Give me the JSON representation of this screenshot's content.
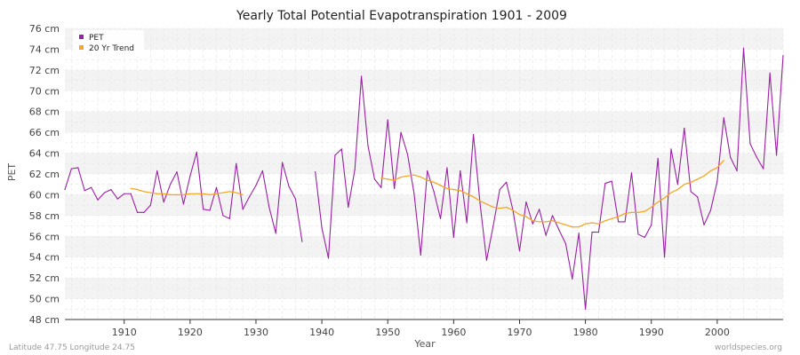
{
  "chart_data": {
    "type": "line",
    "title": "Yearly Total Potential Evapotranspiration 1901 - 2009",
    "xlabel": "Year",
    "ylabel": "PET",
    "y_unit": "cm",
    "xlim": [
      1901,
      2009
    ],
    "ylim": [
      48,
      76
    ],
    "x_ticks": [
      1910,
      1920,
      1930,
      1940,
      1950,
      1960,
      1970,
      1980,
      1990,
      2000
    ],
    "y_ticks": [
      48,
      50,
      52,
      54,
      56,
      58,
      60,
      62,
      64,
      66,
      68,
      70,
      72,
      74,
      76
    ],
    "grid": true,
    "legend_position": "top-left",
    "series": [
      {
        "name": "PET",
        "color": "#9b1fa5",
        "points": [
          [
            1901,
            60.5
          ],
          [
            1902,
            62.5
          ],
          [
            1903,
            62.6
          ],
          [
            1904,
            60.4
          ],
          [
            1905,
            60.7
          ],
          [
            1906,
            59.5
          ],
          [
            1907,
            60.2
          ],
          [
            1908,
            60.5
          ],
          [
            1909,
            59.6
          ],
          [
            1910,
            60.1
          ],
          [
            1911,
            60.1
          ],
          [
            1912,
            58.3
          ],
          [
            1913,
            58.3
          ],
          [
            1914,
            59.0
          ],
          [
            1915,
            62.3
          ],
          [
            1916,
            59.3
          ],
          [
            1917,
            61.0
          ],
          [
            1918,
            62.2
          ],
          [
            1919,
            59.1
          ],
          [
            1920,
            61.8
          ],
          [
            1921,
            64.1
          ],
          [
            1922,
            58.6
          ],
          [
            1923,
            58.5
          ],
          [
            1924,
            60.7
          ],
          [
            1925,
            58.0
          ],
          [
            1926,
            57.7
          ],
          [
            1927,
            63.0
          ],
          [
            1928,
            58.6
          ],
          [
            1929,
            59.8
          ],
          [
            1930,
            60.9
          ],
          [
            1931,
            62.3
          ],
          [
            1932,
            58.8
          ],
          [
            1933,
            56.3
          ],
          [
            1934,
            63.1
          ],
          [
            1935,
            60.8
          ],
          [
            1936,
            59.6
          ],
          [
            1937,
            55.5
          ],
          [
            1938,
            null
          ],
          [
            1939,
            62.2
          ],
          [
            1940,
            56.8
          ],
          [
            1941,
            53.9
          ],
          [
            1942,
            63.8
          ],
          [
            1943,
            64.4
          ],
          [
            1944,
            58.8
          ],
          [
            1945,
            62.4
          ],
          [
            1946,
            71.4
          ],
          [
            1947,
            64.7
          ],
          [
            1948,
            61.5
          ],
          [
            1949,
            60.7
          ],
          [
            1950,
            67.2
          ],
          [
            1951,
            60.6
          ],
          [
            1952,
            66.0
          ],
          [
            1953,
            63.9
          ],
          [
            1954,
            60.1
          ],
          [
            1955,
            54.2
          ],
          [
            1956,
            62.3
          ],
          [
            1957,
            60.3
          ],
          [
            1958,
            57.7
          ],
          [
            1959,
            62.6
          ],
          [
            1960,
            55.9
          ],
          [
            1961,
            62.3
          ],
          [
            1962,
            57.3
          ],
          [
            1963,
            65.8
          ],
          [
            1964,
            59.2
          ],
          [
            1965,
            53.7
          ],
          [
            1966,
            57.0
          ],
          [
            1967,
            60.5
          ],
          [
            1968,
            61.2
          ],
          [
            1969,
            58.5
          ],
          [
            1970,
            54.6
          ],
          [
            1971,
            59.3
          ],
          [
            1972,
            57.2
          ],
          [
            1973,
            58.6
          ],
          [
            1974,
            56.1
          ],
          [
            1975,
            58.0
          ],
          [
            1976,
            56.6
          ],
          [
            1977,
            55.3
          ],
          [
            1978,
            51.9
          ],
          [
            1979,
            56.3
          ],
          [
            1980,
            49.0
          ],
          [
            1981,
            56.4
          ],
          [
            1982,
            56.4
          ],
          [
            1983,
            61.1
          ],
          [
            1984,
            61.3
          ],
          [
            1985,
            57.4
          ],
          [
            1986,
            57.4
          ],
          [
            1987,
            62.1
          ],
          [
            1988,
            56.2
          ],
          [
            1989,
            55.9
          ],
          [
            1990,
            57.1
          ],
          [
            1991,
            63.5
          ],
          [
            1992,
            54.0
          ],
          [
            1993,
            64.4
          ],
          [
            1994,
            61.0
          ],
          [
            1995,
            66.4
          ],
          [
            1996,
            60.3
          ],
          [
            1997,
            59.8
          ],
          [
            1998,
            57.1
          ],
          [
            1999,
            58.5
          ],
          [
            2000,
            61.3
          ],
          [
            2001,
            67.4
          ],
          [
            2002,
            63.6
          ],
          [
            2003,
            62.3
          ],
          [
            2004,
            74.1
          ],
          [
            2005,
            64.9
          ],
          [
            2006,
            63.6
          ],
          [
            2007,
            62.5
          ],
          [
            2008,
            71.7
          ],
          [
            2009,
            63.8
          ],
          [
            2010,
            73.4
          ]
        ]
      },
      {
        "name": "20 Yr Trend",
        "color": "#f5a623",
        "points": [
          [
            1911,
            60.6
          ],
          [
            1912,
            60.5
          ],
          [
            1913,
            60.3
          ],
          [
            1914,
            60.2
          ],
          [
            1915,
            60.1
          ],
          [
            1916,
            60.1
          ],
          [
            1917,
            60.0
          ],
          [
            1918,
            60.0
          ],
          [
            1919,
            60.0
          ],
          [
            1920,
            60.1
          ],
          [
            1921,
            60.1
          ],
          [
            1922,
            60.1
          ],
          [
            1923,
            60.0
          ],
          [
            1924,
            60.1
          ],
          [
            1925,
            60.2
          ],
          [
            1926,
            60.3
          ],
          [
            1927,
            60.2
          ],
          [
            1928,
            60.0
          ],
          [
            1929,
            null
          ],
          [
            1930,
            null
          ],
          [
            1931,
            null
          ],
          [
            1932,
            null
          ],
          [
            1933,
            null
          ],
          [
            1934,
            null
          ],
          [
            1935,
            null
          ],
          [
            1936,
            null
          ],
          [
            1937,
            null
          ],
          [
            1938,
            null
          ],
          [
            1939,
            null
          ],
          [
            1940,
            null
          ],
          [
            1941,
            null
          ],
          [
            1942,
            null
          ],
          [
            1943,
            null
          ],
          [
            1944,
            null
          ],
          [
            1945,
            null
          ],
          [
            1946,
            null
          ],
          [
            1947,
            null
          ],
          [
            1948,
            null
          ],
          [
            1949,
            61.6
          ],
          [
            1950,
            61.5
          ],
          [
            1951,
            61.4
          ],
          [
            1952,
            61.7
          ],
          [
            1953,
            61.8
          ],
          [
            1954,
            61.9
          ],
          [
            1955,
            61.7
          ],
          [
            1956,
            61.4
          ],
          [
            1957,
            61.2
          ],
          [
            1958,
            60.9
          ],
          [
            1959,
            60.6
          ],
          [
            1960,
            60.5
          ],
          [
            1961,
            60.4
          ],
          [
            1962,
            60.1
          ],
          [
            1963,
            59.8
          ],
          [
            1964,
            59.4
          ],
          [
            1965,
            59.1
          ],
          [
            1966,
            58.8
          ],
          [
            1967,
            58.7
          ],
          [
            1968,
            58.8
          ],
          [
            1969,
            58.5
          ],
          [
            1970,
            58.1
          ],
          [
            1971,
            57.9
          ],
          [
            1972,
            57.5
          ],
          [
            1973,
            57.4
          ],
          [
            1974,
            57.4
          ],
          [
            1975,
            57.5
          ],
          [
            1976,
            57.3
          ],
          [
            1977,
            57.1
          ],
          [
            1978,
            56.9
          ],
          [
            1979,
            56.9
          ],
          [
            1980,
            57.2
          ],
          [
            1981,
            57.3
          ],
          [
            1982,
            57.2
          ],
          [
            1983,
            57.5
          ],
          [
            1984,
            57.7
          ],
          [
            1985,
            57.9
          ],
          [
            1986,
            58.2
          ],
          [
            1987,
            58.3
          ],
          [
            1988,
            58.3
          ],
          [
            1989,
            58.4
          ],
          [
            1990,
            58.8
          ],
          [
            1991,
            59.3
          ],
          [
            1992,
            59.7
          ],
          [
            1993,
            60.2
          ],
          [
            1994,
            60.5
          ],
          [
            1995,
            61.0
          ],
          [
            1996,
            61.2
          ],
          [
            1997,
            61.5
          ],
          [
            1998,
            61.8
          ],
          [
            1999,
            62.3
          ],
          [
            2000,
            62.6
          ],
          [
            2001,
            63.3
          ]
        ]
      }
    ]
  },
  "footer": {
    "left": "Latitude 47.75 Longitude 24.75",
    "right": "worldspecies.org"
  }
}
